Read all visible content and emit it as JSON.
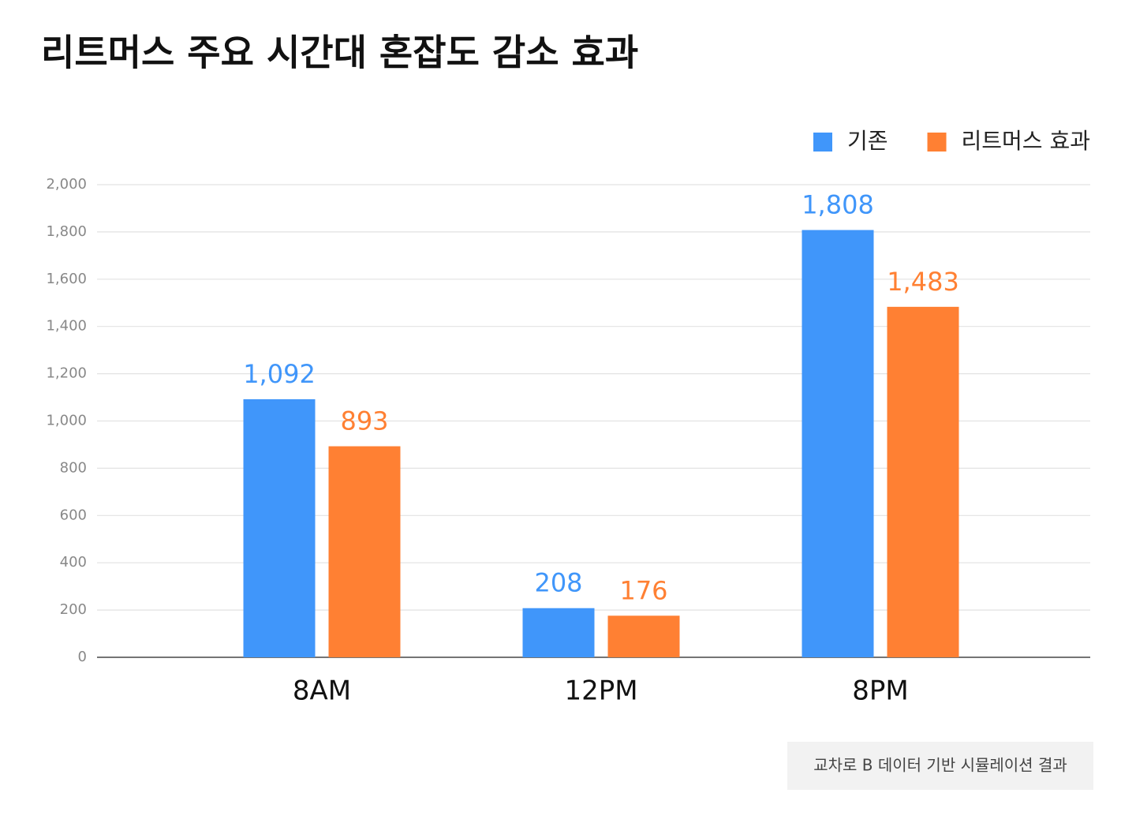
{
  "chart_data": {
    "type": "bar",
    "title": "리트머스 주요 시간대 혼잡도 감소 효과",
    "categories": [
      "8AM",
      "12PM",
      "8PM"
    ],
    "series": [
      {
        "name": "기존",
        "color": "#4096fa",
        "values": [
          1092,
          208,
          1808
        ],
        "value_labels": [
          "1,092",
          "208",
          "1,808"
        ]
      },
      {
        "name": "리트머스 효과",
        "color": "#ff8033",
        "values": [
          893,
          176,
          1483
        ],
        "value_labels": [
          "893",
          "176",
          "1,483"
        ]
      }
    ],
    "ylim": [
      0,
      2000
    ],
    "yticks": [
      0,
      200,
      400,
      600,
      800,
      {
        "value": 1000,
        "label": "1,000"
      },
      {
        "value": 1200,
        "label": "1,200"
      },
      {
        "value": 1400,
        "label": "1,400"
      },
      {
        "value": 1600,
        "label": "1,600"
      },
      {
        "value": 1800,
        "label": "1,800"
      },
      {
        "value": 2000,
        "label": "2,000"
      }
    ],
    "grid": true,
    "legend": "top-right",
    "note": "교차로 B 데이터 기반 시뮬레이션 결과"
  }
}
